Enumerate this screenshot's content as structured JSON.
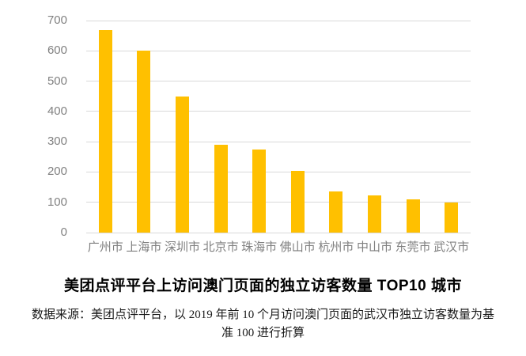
{
  "chart_data": {
    "type": "bar",
    "title": "美团点评平台上访问澳门页面的独立访客数量 TOP10 城市",
    "categories": [
      "广州市",
      "上海市",
      "深圳市",
      "北京市",
      "珠海市",
      "佛山市",
      "杭州市",
      "中山市",
      "东莞市",
      "武汉市"
    ],
    "values": [
      670,
      600,
      448,
      290,
      273,
      203,
      135,
      124,
      110,
      100
    ],
    "xlabel": "",
    "ylabel": "",
    "ylim": [
      0,
      700
    ],
    "yticks": [
      0,
      100,
      200,
      300,
      400,
      500,
      600,
      700
    ],
    "grid": "horizontal",
    "legend": "none",
    "source_note_line1": "数据来源：美团点评平台，以 2019 年前 10 个月访问澳门页面的武汉市独立访客数量为基",
    "source_note_line2": "准 100 进行折算"
  },
  "colors": {
    "bar": "#FFC000",
    "gridline": "#D9D9D9",
    "axis_text": "#808080",
    "title_text": "#000000",
    "note_text": "#1A1A1A",
    "background": "#FFFFFF"
  }
}
